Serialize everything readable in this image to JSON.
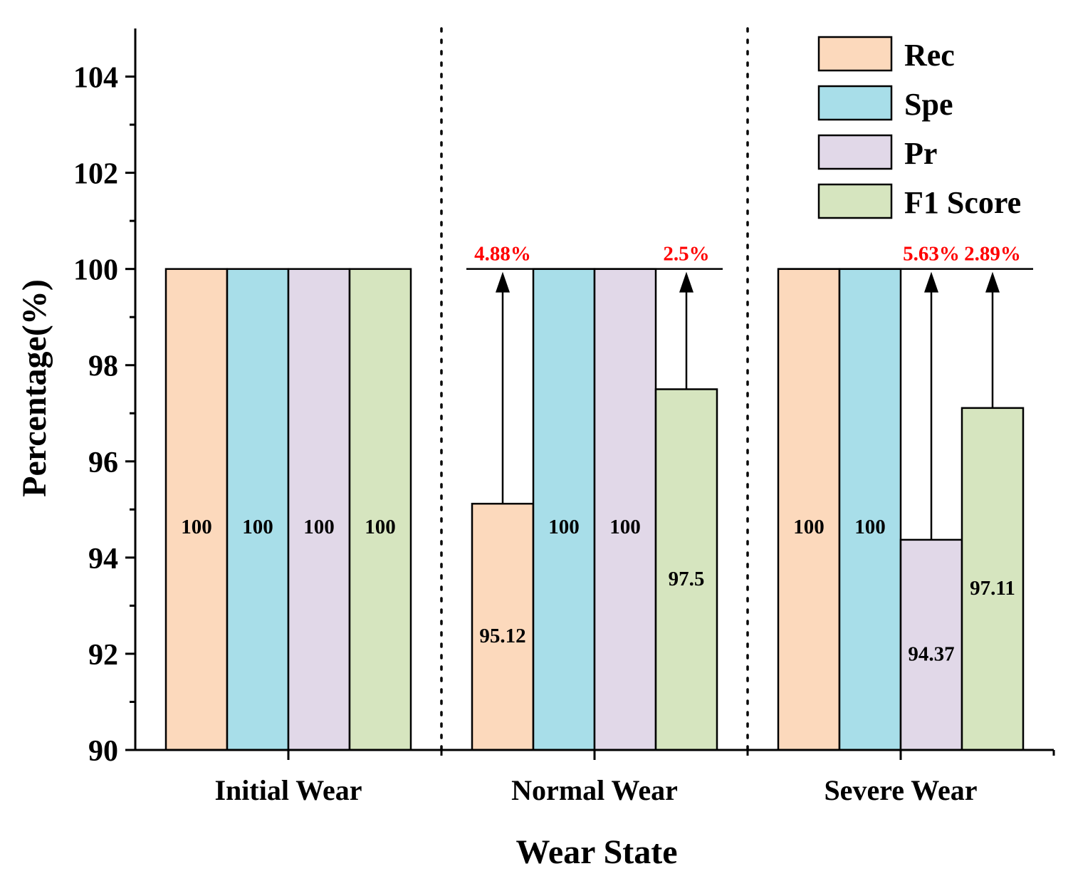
{
  "chart_data": {
    "type": "bar",
    "xlabel": "Wear State",
    "ylabel": "Percentage(%)",
    "ylim": [
      90,
      105
    ],
    "yticks": [
      "90",
      "92",
      "94",
      "96",
      "98",
      "100",
      "102",
      "104"
    ],
    "categories": [
      "Initial Wear",
      "Normal Wear",
      "Severe Wear"
    ],
    "series": [
      {
        "name": "Rec",
        "color": "#FCD9BC",
        "values": [
          100,
          95.12,
          100
        ],
        "labels": [
          "100",
          "95.12",
          "100"
        ]
      },
      {
        "name": "Spe",
        "color": "#A8DEE9",
        "values": [
          100,
          100,
          100
        ],
        "labels": [
          "100",
          "100",
          "100"
        ]
      },
      {
        "name": "Pr",
        "color": "#E1D8E8",
        "values": [
          100,
          100,
          94.37
        ],
        "labels": [
          "100",
          "100",
          "94.37"
        ]
      },
      {
        "name": "F1 Score",
        "color": "#D6E5BF",
        "values": [
          100,
          97.5,
          97.11
        ],
        "labels": [
          "100",
          "97.5",
          "97.11"
        ]
      }
    ],
    "improvements": [
      {
        "category": 1,
        "series": 0,
        "label": "4.88%"
      },
      {
        "category": 1,
        "series": 3,
        "label": "2.5%"
      },
      {
        "category": 2,
        "series": 2,
        "label": "5.63%"
      },
      {
        "category": 2,
        "series": 3,
        "label": "2.89%"
      }
    ],
    "annotation_color": "#FF0000",
    "legend": "top-right",
    "grid": false
  }
}
